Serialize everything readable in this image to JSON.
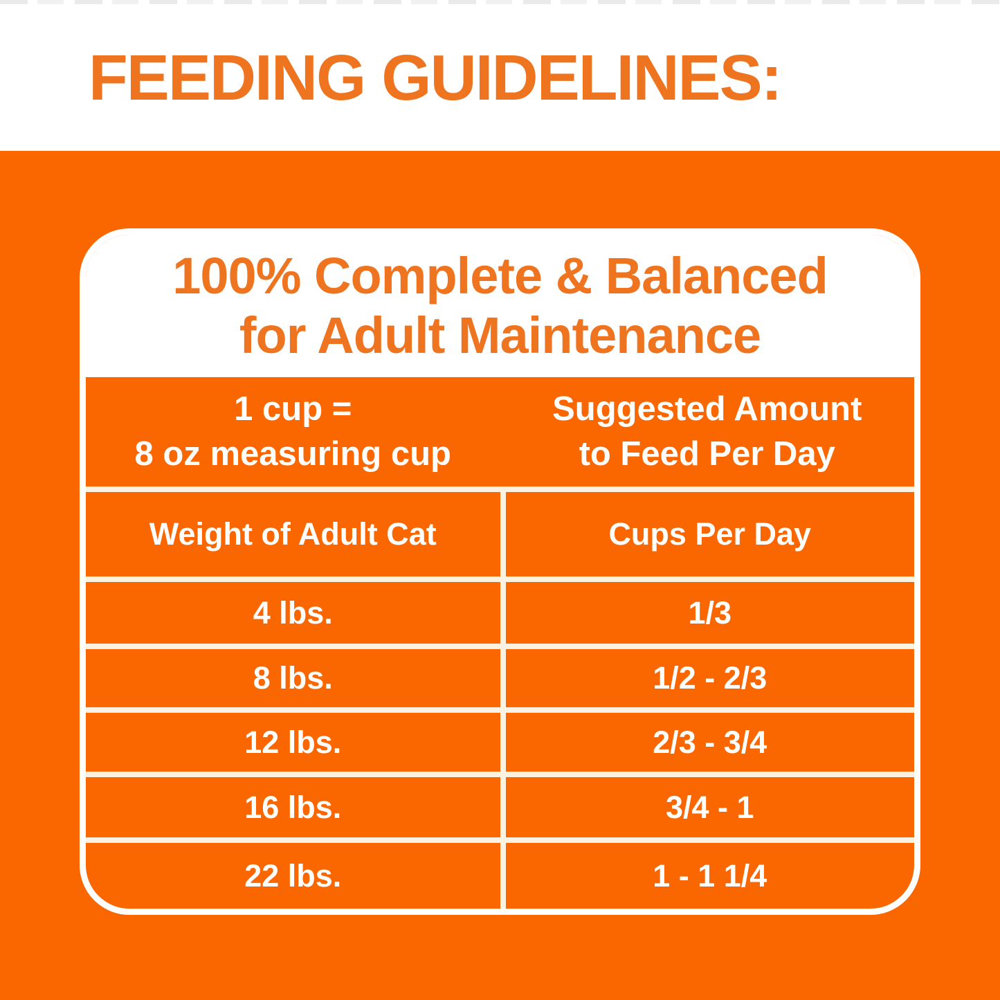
{
  "banner": {
    "title": "FEEDING GUIDELINES:"
  },
  "card": {
    "title_line1": "100% Complete & Balanced",
    "title_line2": "for Adult Maintenance",
    "table": {
      "measure_note": {
        "line1": "1 cup =",
        "line2": "8 oz measuring cup"
      },
      "suggested": {
        "line1": "Suggested Amount",
        "line2": "to Feed Per Day"
      },
      "columns": [
        "Weight of Adult Cat",
        "Cups Per Day"
      ],
      "rows": [
        {
          "weight": "4 lbs.",
          "cups": "1/3"
        },
        {
          "weight": "8 lbs.",
          "cups": "1/2 - 2/3"
        },
        {
          "weight": "12 lbs.",
          "cups": "2/3 - 3/4"
        },
        {
          "weight": "16 lbs.",
          "cups": "3/4 - 1"
        },
        {
          "weight": "22 lbs.",
          "cups": "1 - 1 1/4"
        }
      ]
    }
  },
  "colors": {
    "background_orange": "#FA6600",
    "accent_text_orange": "#EE7420",
    "grid_line_cream": "#FBF2E2",
    "card_border_white": "#FFFFFF"
  }
}
